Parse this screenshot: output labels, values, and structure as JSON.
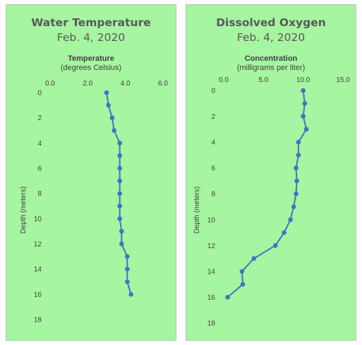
{
  "chart_data": [
    {
      "type": "line",
      "title": "Water Temperature",
      "subtitle": "Feb. 4, 2020",
      "xlabel": "Temperature",
      "xlabel_unit": "(degrees Celsius)",
      "ylabel": "Depth (meters)",
      "xlim": [
        0,
        6
      ],
      "ylim": [
        0,
        18
      ],
      "x_axis_position": "top",
      "y_axis_reversed": true,
      "x_ticks": [
        "0.0",
        "2.0",
        "4.0",
        "6.0"
      ],
      "y_ticks": [
        "0",
        "2",
        "4",
        "6",
        "8",
        "10",
        "12",
        "14",
        "16",
        "18"
      ],
      "color": "#4472c4",
      "grid": false,
      "points": [
        {
          "x": 3.0,
          "y": 0
        },
        {
          "x": 3.1,
          "y": 1
        },
        {
          "x": 3.3,
          "y": 2
        },
        {
          "x": 3.4,
          "y": 3
        },
        {
          "x": 3.7,
          "y": 4
        },
        {
          "x": 3.7,
          "y": 5
        },
        {
          "x": 3.7,
          "y": 6
        },
        {
          "x": 3.7,
          "y": 7
        },
        {
          "x": 3.7,
          "y": 8
        },
        {
          "x": 3.7,
          "y": 9
        },
        {
          "x": 3.7,
          "y": 10
        },
        {
          "x": 3.8,
          "y": 11
        },
        {
          "x": 3.8,
          "y": 12
        },
        {
          "x": 4.1,
          "y": 13
        },
        {
          "x": 4.1,
          "y": 14
        },
        {
          "x": 4.1,
          "y": 15
        },
        {
          "x": 4.3,
          "y": 16
        }
      ]
    },
    {
      "type": "line",
      "title": "Dissolved Oxygen",
      "subtitle": "Feb. 4, 2020",
      "xlabel": "Concentration",
      "xlabel_unit": "(milligrams per liter)",
      "ylabel": "Depth (meters)",
      "xlim": [
        0,
        15
      ],
      "ylim": [
        0,
        18
      ],
      "x_axis_position": "top",
      "y_axis_reversed": true,
      "x_ticks": [
        "0.0",
        "5.0",
        "10.0",
        "15.0"
      ],
      "y_ticks": [
        "0",
        "2",
        "4",
        "6",
        "8",
        "10",
        "12",
        "14",
        "16",
        "18"
      ],
      "color": "#4472c4",
      "grid": false,
      "points": [
        {
          "x": 10.0,
          "y": 0
        },
        {
          "x": 10.2,
          "y": 1
        },
        {
          "x": 10.0,
          "y": 2
        },
        {
          "x": 10.4,
          "y": 3
        },
        {
          "x": 9.4,
          "y": 4
        },
        {
          "x": 9.4,
          "y": 5
        },
        {
          "x": 9.1,
          "y": 6
        },
        {
          "x": 9.2,
          "y": 7
        },
        {
          "x": 9.1,
          "y": 8
        },
        {
          "x": 8.8,
          "y": 9
        },
        {
          "x": 8.4,
          "y": 10
        },
        {
          "x": 7.6,
          "y": 11
        },
        {
          "x": 6.5,
          "y": 12
        },
        {
          "x": 3.8,
          "y": 13
        },
        {
          "x": 2.3,
          "y": 14
        },
        {
          "x": 2.4,
          "y": 15
        },
        {
          "x": 0.5,
          "y": 16
        }
      ]
    }
  ]
}
